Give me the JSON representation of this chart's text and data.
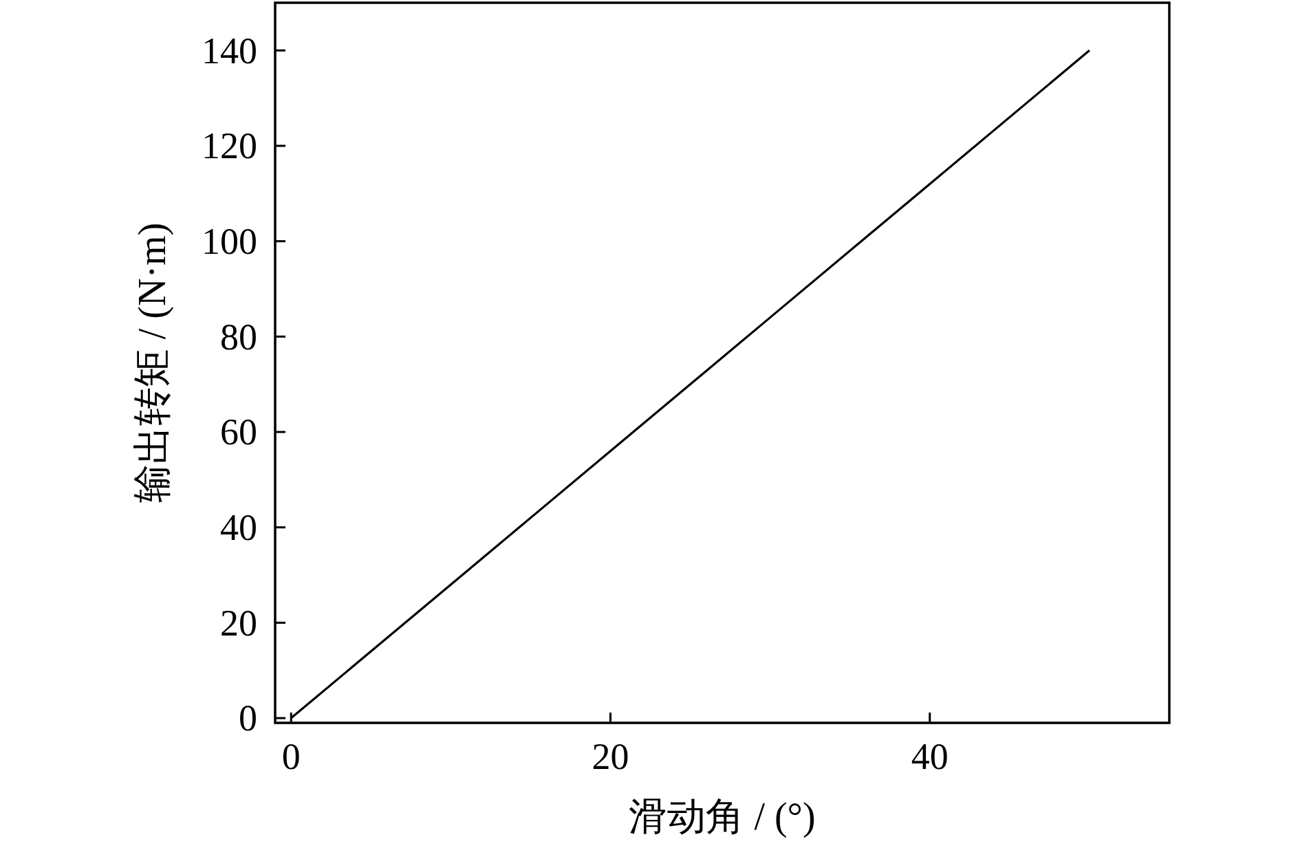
{
  "chart_data": {
    "type": "line",
    "xlabel": "滑动角 / (°)",
    "ylabel": "输出转矩 / (N·m)",
    "x": [
      0,
      10,
      20,
      30,
      40,
      50
    ],
    "series": [
      {
        "color": "#000000",
        "values": [
          0,
          28,
          56,
          84,
          112,
          140
        ]
      }
    ],
    "xlim": [
      -1,
      55
    ],
    "ylim": [
      -1,
      150
    ],
    "xticks": [
      0,
      20,
      40
    ],
    "yticks": [
      0,
      20,
      40,
      60,
      80,
      100,
      120,
      140
    ],
    "line_style": "solid"
  }
}
